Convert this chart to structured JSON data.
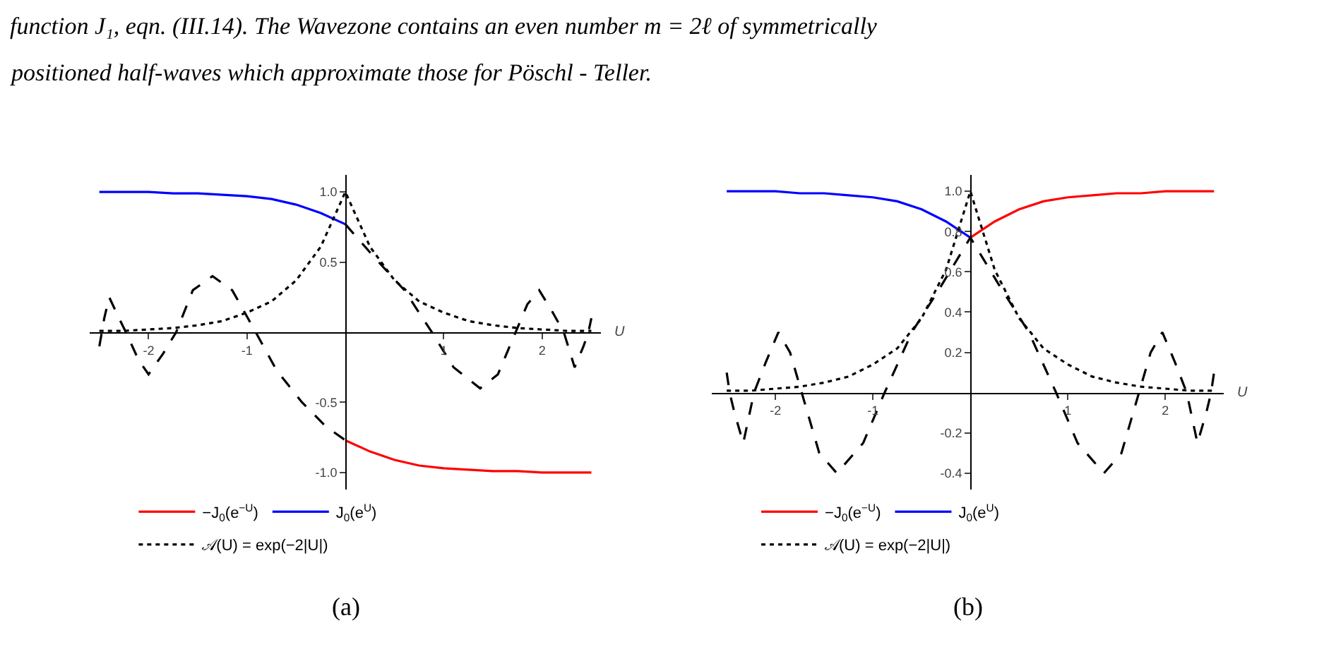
{
  "chart_data": [
    {
      "type": "line",
      "annotations": [
        "function J₁, eqn. (III.14). The Wavezone contains an even number m = 2ℓ of symmetrically",
        "positioned half-waves which approximate those for Pöschl - Teller.",
        "(a)"
      ],
      "xlabel": "U",
      "xlim": [
        -2.6,
        2.6
      ],
      "ylim": [
        -1.12,
        1.12
      ],
      "xticks": [
        -2,
        -1,
        1,
        2
      ],
      "yticks": [
        {
          "value": -1,
          "label": "-1.0"
        },
        {
          "value": -0.5,
          "label": "-0.5"
        },
        {
          "value": 0.5,
          "label": "0.5"
        },
        {
          "value": 1,
          "label": "1.0"
        }
      ],
      "legend": "bottom",
      "marker": "none",
      "series": [
        {
          "name": "−J$_{0}$(e$^{−U}$)",
          "color": "#ff0000",
          "line_style": "solid",
          "x": [
            0,
            0.25,
            0.5,
            0.75,
            1,
            1.25,
            1.5,
            1.75,
            2,
            2.25,
            2.5
          ],
          "values": [
            -0.77,
            -0.85,
            -0.91,
            -0.95,
            -0.97,
            -0.98,
            -0.99,
            -0.99,
            -1.0,
            -1.0,
            -1.0
          ]
        },
        {
          "name": "J$_{0}$(e$^{U}$)",
          "color": "#0000ff",
          "line_style": "solid",
          "x": [
            -2.5,
            -2.25,
            -2,
            -1.75,
            -1.5,
            -1.25,
            -1,
            -0.75,
            -0.5,
            -0.25,
            0
          ],
          "values": [
            1.0,
            1.0,
            1.0,
            0.99,
            0.99,
            0.98,
            0.97,
            0.95,
            0.91,
            0.85,
            0.77
          ]
        },
        {
          "name": "𝒜(U) = exp(−2|U|)",
          "color": "#000000",
          "line_style": "dotted",
          "x": [
            -2.5,
            -2.25,
            -2,
            -1.75,
            -1.5,
            -1.25,
            -1,
            -0.75,
            -0.5,
            -0.25,
            0,
            0.25,
            0.5,
            0.75,
            1,
            1.25,
            1.5,
            1.75,
            2,
            2.25,
            2.5
          ],
          "values": [
            0.01,
            0.01,
            0.02,
            0.03,
            0.05,
            0.08,
            0.14,
            0.22,
            0.37,
            0.61,
            1.0,
            0.61,
            0.37,
            0.22,
            0.14,
            0.08,
            0.05,
            0.03,
            0.02,
            0.01,
            0.01
          ]
        },
        {
          "color": "#000000",
          "line_style": "dashed",
          "x": [
            -2.5,
            -2.45,
            -2.4,
            -2.3,
            -2.23,
            -2.1,
            -2.0,
            -1.85,
            -1.72,
            -1.55,
            -1.35,
            -1.15,
            -0.91,
            -0.7,
            -0.44,
            -0.2,
            0
          ],
          "values": [
            -0.1,
            0.1,
            0.25,
            0.1,
            0,
            -0.2,
            -0.3,
            -0.15,
            0,
            0.3,
            0.4,
            0.3,
            0,
            -0.27,
            -0.5,
            -0.67,
            -0.77
          ]
        },
        {
          "color": "#000000",
          "line_style": "dashed",
          "x": [
            0,
            0.3,
            0.6,
            0.88,
            1.1,
            1.37,
            1.55,
            1.73,
            1.85,
            1.97,
            2.1,
            2.22,
            2.33,
            2.42,
            2.47,
            2.5
          ],
          "values": [
            0.77,
            0.53,
            0.3,
            0,
            -0.25,
            -0.4,
            -0.3,
            0,
            0.2,
            0.3,
            0.15,
            0,
            -0.25,
            -0.1,
            0,
            0.1
          ]
        }
      ]
    },
    {
      "type": "line",
      "annotations": [
        "(b)"
      ],
      "xlabel": "U",
      "xlim": [
        -2.65,
        2.6
      ],
      "ylim": [
        -0.48,
        1.08
      ],
      "xticks": [
        -2,
        -1,
        1,
        2
      ],
      "yticks": [
        -0.4,
        -0.2,
        0.2,
        0.4,
        0.6,
        0.8,
        {
          "value": 1,
          "label": "1.0"
        }
      ],
      "legend": "bottom",
      "marker": "none",
      "series": [
        {
          "name": "−J$_{0}$(e$^{−U}$)",
          "color": "#ff0000",
          "line_style": "solid",
          "x": [
            0,
            0.25,
            0.5,
            0.75,
            1,
            1.25,
            1.5,
            1.75,
            2,
            2.25,
            2.5
          ],
          "values": [
            0.77,
            0.85,
            0.91,
            0.95,
            0.97,
            0.98,
            0.99,
            0.99,
            1.0,
            1.0,
            1.0
          ]
        },
        {
          "name": "J$_{0}$(e$^{U}$)",
          "color": "#0000ff",
          "line_style": "solid",
          "x": [
            -2.5,
            -2.25,
            -2,
            -1.75,
            -1.5,
            -1.25,
            -1,
            -0.75,
            -0.5,
            -0.25,
            0
          ],
          "values": [
            1.0,
            1.0,
            1.0,
            0.99,
            0.99,
            0.98,
            0.97,
            0.95,
            0.91,
            0.85,
            0.77
          ]
        },
        {
          "name": "𝒜(U) = exp(−2|U|)",
          "color": "#000000",
          "line_style": "dotted",
          "x": [
            -2.5,
            -2.25,
            -2,
            -1.75,
            -1.5,
            -1.25,
            -1,
            -0.75,
            -0.5,
            -0.25,
            0,
            0.25,
            0.5,
            0.75,
            1,
            1.25,
            1.5,
            1.75,
            2,
            2.25,
            2.5
          ],
          "values": [
            0.01,
            0.01,
            0.02,
            0.03,
            0.05,
            0.08,
            0.14,
            0.22,
            0.37,
            0.61,
            1.0,
            0.61,
            0.37,
            0.22,
            0.14,
            0.08,
            0.05,
            0.03,
            0.02,
            0.01,
            0.01
          ]
        },
        {
          "color": "#000000",
          "line_style": "dashed",
          "x": [
            -2.5,
            -2.47,
            -2.42,
            -2.33,
            -2.22,
            -2.1,
            -1.97,
            -1.85,
            -1.73,
            -1.55,
            -1.37,
            -1.1,
            -0.88,
            -0.6,
            -0.3,
            0,
            0.3,
            0.6,
            0.88,
            1.1,
            1.37,
            1.55,
            1.73,
            1.85,
            1.97,
            2.1,
            2.22,
            2.33,
            2.42,
            2.47,
            2.5
          ],
          "values": [
            0.1,
            0,
            -0.1,
            -0.25,
            0,
            0.15,
            0.3,
            0.2,
            0,
            -0.3,
            -0.4,
            -0.25,
            0,
            0.3,
            0.53,
            0.77,
            0.53,
            0.3,
            0,
            -0.25,
            -0.4,
            -0.3,
            0,
            0.2,
            0.3,
            0.15,
            0,
            -0.25,
            -0.1,
            0,
            0.1
          ]
        }
      ]
    }
  ]
}
